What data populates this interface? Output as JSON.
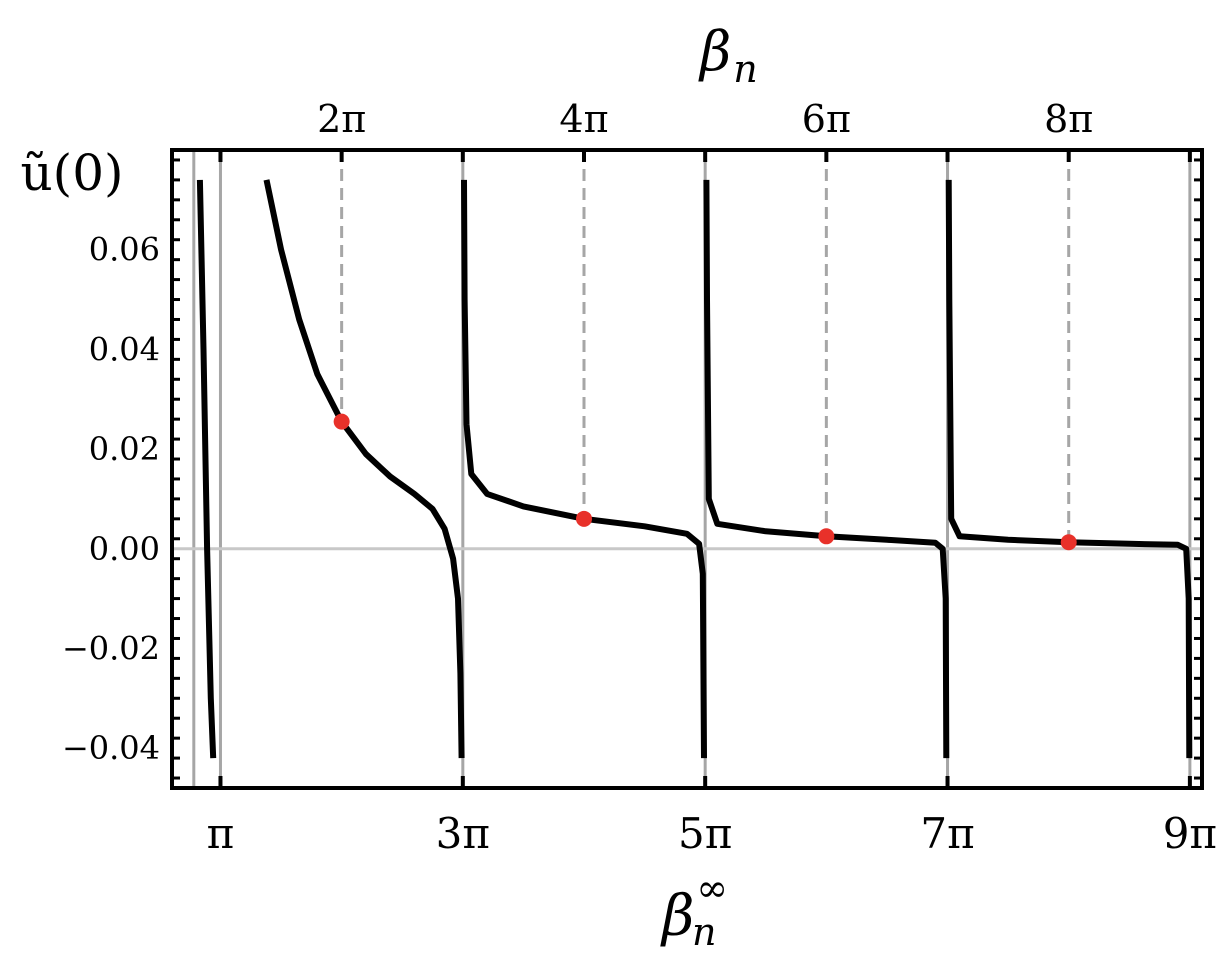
{
  "chart_data": {
    "type": "line",
    "ylabel": "ũ(0)",
    "xlabel_bottom_base": "β",
    "xlabel_bottom_sub": "n",
    "xlabel_bottom_sup": "∞",
    "xlabel_top_base": "β",
    "xlabel_top_sub": "n",
    "x_unit": "pi",
    "xlim": [
      0.6,
      9.1
    ],
    "ylim": [
      -0.048,
      0.08
    ],
    "grid": false,
    "yticks": [
      {
        "value": 0.06,
        "label": "0.06"
      },
      {
        "value": 0.04,
        "label": "0.04"
      },
      {
        "value": 0.02,
        "label": "0.02"
      },
      {
        "value": 0.0,
        "label": "0.00"
      },
      {
        "value": -0.02,
        "label": "−0.02"
      },
      {
        "value": -0.04,
        "label": "−0.04"
      }
    ],
    "xticks_bottom": [
      {
        "value": 1,
        "label": "π"
      },
      {
        "value": 3,
        "label": "3π"
      },
      {
        "value": 5,
        "label": "5π"
      },
      {
        "value": 7,
        "label": "7π"
      },
      {
        "value": 9,
        "label": "9π"
      }
    ],
    "xticks_top": [
      {
        "value": 2,
        "label": "2π"
      },
      {
        "value": 4,
        "label": "4π"
      },
      {
        "value": 6,
        "label": "6π"
      },
      {
        "value": 8,
        "label": "8π"
      }
    ],
    "vertical_lines_solid": [
      0.78,
      1,
      3,
      5,
      7,
      9
    ],
    "vertical_lines_dashed": [
      2,
      4,
      6,
      8
    ],
    "series": [
      {
        "points": [
          [
            0.83,
            0.074
          ],
          [
            0.86,
            0.04
          ],
          [
            0.89,
            0.0
          ],
          [
            0.92,
            -0.03
          ],
          [
            0.94,
            -0.042
          ]
        ]
      },
      {
        "points": [
          [
            1.38,
            0.074
          ],
          [
            1.5,
            0.06
          ],
          [
            1.65,
            0.046
          ],
          [
            1.8,
            0.035
          ],
          [
            2.0,
            0.0255
          ],
          [
            2.2,
            0.019
          ],
          [
            2.4,
            0.0145
          ],
          [
            2.6,
            0.011
          ],
          [
            2.75,
            0.008
          ],
          [
            2.85,
            0.004
          ],
          [
            2.92,
            -0.002
          ],
          [
            2.96,
            -0.01
          ],
          [
            2.98,
            -0.025
          ],
          [
            2.99,
            -0.042
          ]
        ]
      },
      {
        "points": [
          [
            3.01,
            0.074
          ],
          [
            3.015,
            0.05
          ],
          [
            3.03,
            0.025
          ],
          [
            3.07,
            0.015
          ],
          [
            3.2,
            0.011
          ],
          [
            3.5,
            0.0085
          ],
          [
            4.0,
            0.006
          ],
          [
            4.5,
            0.0045
          ],
          [
            4.85,
            0.003
          ],
          [
            4.95,
            0.001
          ],
          [
            4.98,
            -0.005
          ],
          [
            4.99,
            -0.042
          ]
        ]
      },
      {
        "points": [
          [
            5.01,
            0.074
          ],
          [
            5.015,
            0.05
          ],
          [
            5.03,
            0.01
          ],
          [
            5.1,
            0.005
          ],
          [
            5.5,
            0.0035
          ],
          [
            6.0,
            0.0025
          ],
          [
            6.5,
            0.0018
          ],
          [
            6.9,
            0.0012
          ],
          [
            6.96,
            0.0
          ],
          [
            6.985,
            -0.01
          ],
          [
            6.99,
            -0.042
          ]
        ]
      },
      {
        "points": [
          [
            7.01,
            0.074
          ],
          [
            7.015,
            0.05
          ],
          [
            7.03,
            0.006
          ],
          [
            7.1,
            0.0025
          ],
          [
            7.5,
            0.0018
          ],
          [
            8.0,
            0.0013
          ],
          [
            8.5,
            0.001
          ],
          [
            8.9,
            0.0008
          ],
          [
            8.97,
            0.0
          ],
          [
            8.99,
            -0.01
          ],
          [
            8.995,
            -0.042
          ]
        ]
      }
    ],
    "markers": [
      {
        "x": 2,
        "y": 0.0255
      },
      {
        "x": 4,
        "y": 0.006
      },
      {
        "x": 6,
        "y": 0.0025
      },
      {
        "x": 8,
        "y": 0.0013
      }
    ],
    "colors": {
      "curve": "#000000",
      "marker": "#e8312a",
      "vline": "#a6a6a6",
      "zero_line": "#c8c8c8"
    }
  }
}
